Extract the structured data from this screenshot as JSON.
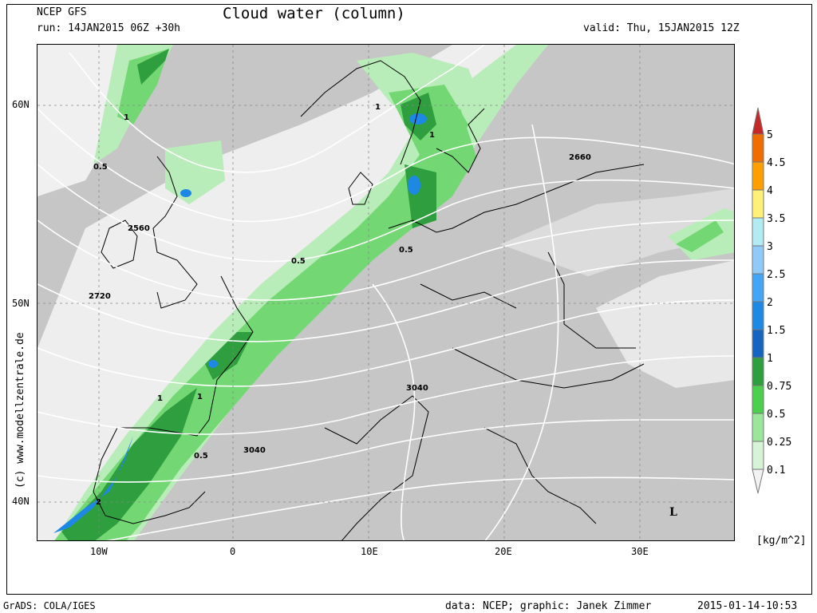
{
  "header": {
    "model": "NCEP GFS",
    "run": "run: 14JAN2015 06Z +30h",
    "title": "Cloud water (column)",
    "valid": "valid: Thu, 15JAN2015 12Z"
  },
  "axes": {
    "lat_labels": [
      "60N",
      "50N",
      "40N"
    ],
    "lon_labels": [
      "10W",
      "0",
      "10E",
      "20E",
      "30E"
    ]
  },
  "contour_labels": {
    "c2560": "2560",
    "c2660": "2660",
    "c2720": "2720",
    "c3040a": "3040",
    "c3040b": "3040",
    "l": "L",
    "v05": "0.5",
    "v1": "1",
    "v2": "2"
  },
  "colorbar": {
    "levels": [
      "5",
      "4.5",
      "4",
      "3.5",
      "3",
      "2.5",
      "2",
      "1.5",
      "1",
      "0.75",
      "0.5",
      "0.25",
      "0.1"
    ],
    "colors": [
      "#c62828",
      "#ef6c00",
      "#ffa000",
      "#fff176",
      "#b2ebf2",
      "#90caf9",
      "#42a5f5",
      "#1e88e5",
      "#1565c0",
      "#2e9e3e",
      "#4ccf4c",
      "#9be69b",
      "#d6f5d6",
      "#f2f2f2"
    ],
    "unit": "[kg/m^2]"
  },
  "footer": {
    "grads": "GrADS: COLA/IGES",
    "credit": "data: NCEP; graphic: Janek Zimmer",
    "timestamp": "2015-01-14-10:53",
    "watermark": "(c)  www.modellzentrale.de"
  }
}
